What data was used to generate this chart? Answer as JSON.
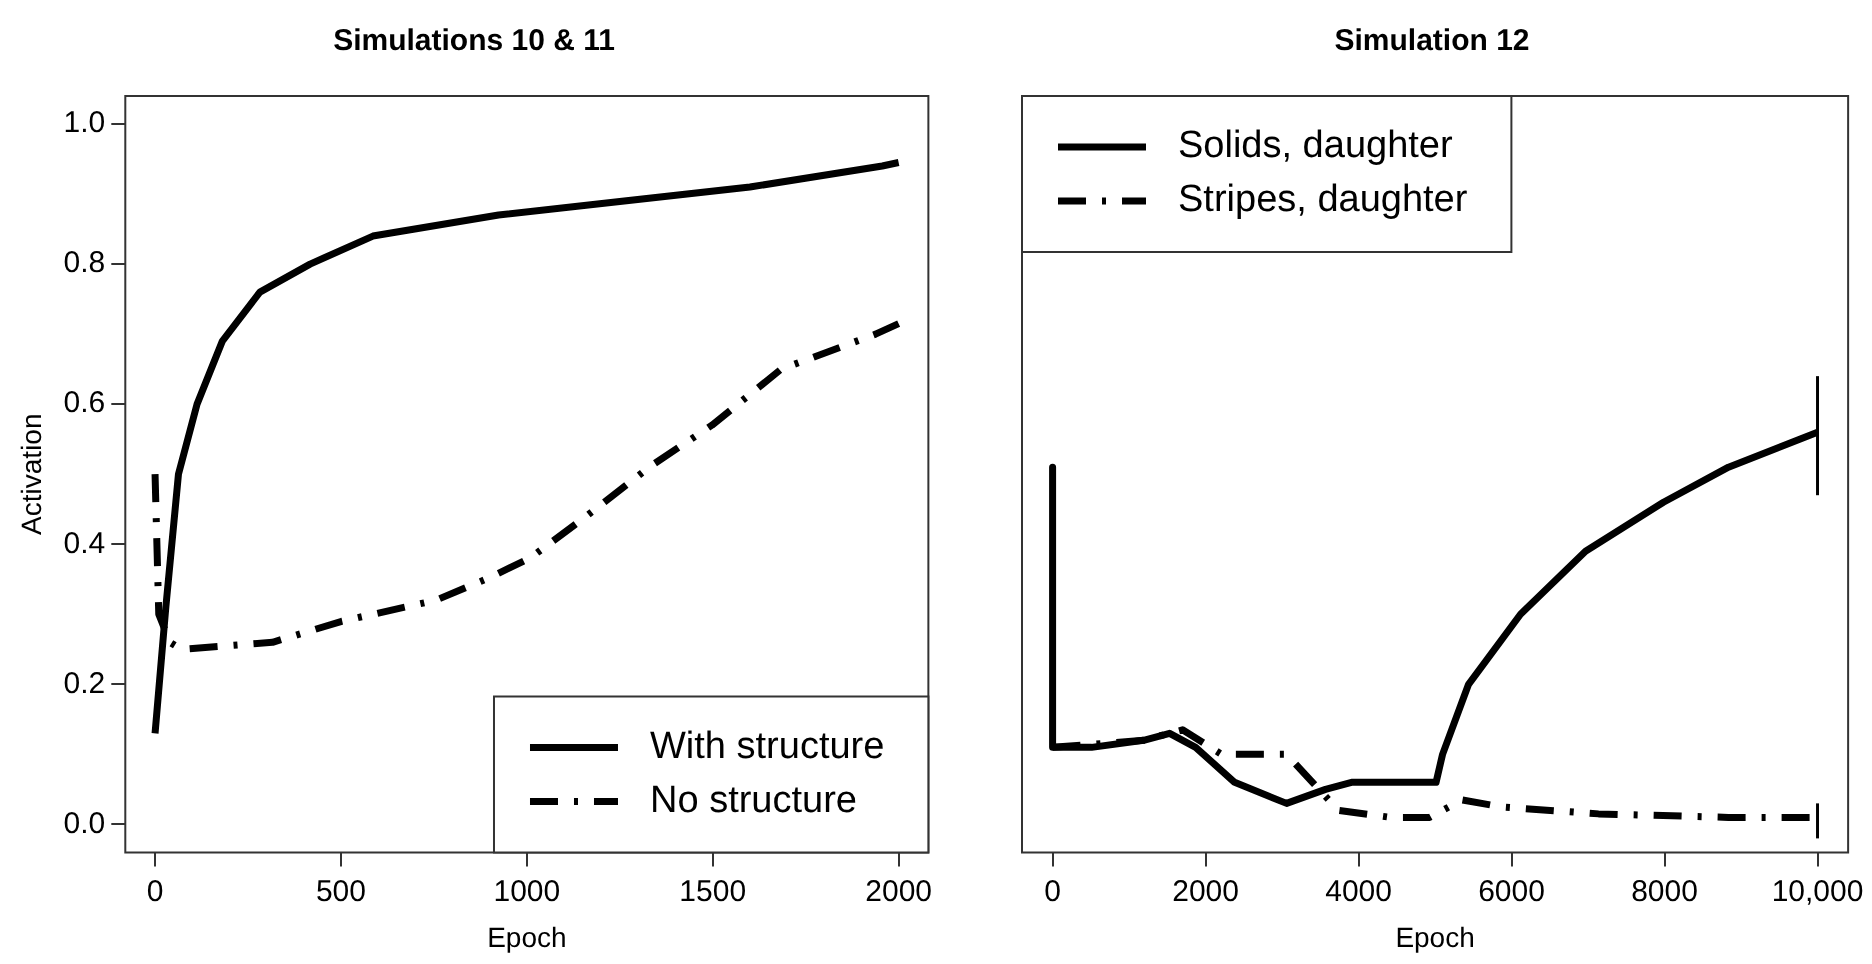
{
  "chart_data": [
    {
      "type": "line",
      "title": "Simulations 10 & 11",
      "xlabel": "Epoch",
      "ylabel": "Activation",
      "xlim": [
        -80,
        2080
      ],
      "ylim": [
        -0.04,
        1.04
      ],
      "xticks": [
        0,
        500,
        1000,
        1500,
        2000
      ],
      "yticks": [
        {
          "value": 0,
          "label": "0.0"
        },
        0.2,
        0.4,
        0.6,
        0.8,
        {
          "value": 1,
          "label": "1.0"
        }
      ],
      "grid": false,
      "legend": "bottom right",
      "marker": "none",
      "series": [
        {
          "name": "With structure",
          "color": "#000000",
          "line_style": "solid",
          "x": [
            0,
            29,
            63,
            113,
            181,
            282,
            417,
            586,
            924,
            1262,
            1600,
            1956,
            2000
          ],
          "values": [
            0.13,
            0.31,
            0.5,
            0.6,
            0.69,
            0.76,
            0.8,
            0.84,
            0.87,
            0.89,
            0.91,
            0.94,
            0.945
          ]
        },
        {
          "name": "No structure",
          "color": "#000000",
          "line_style": "dashed",
          "x": [
            0,
            10,
            40,
            71,
            316,
            502,
            755,
            890,
            1008,
            1160,
            1329,
            1498,
            1684,
            1938,
            2000
          ],
          "values": [
            0.5,
            0.3,
            0.26,
            0.25,
            0.26,
            0.29,
            0.32,
            0.35,
            0.38,
            0.44,
            0.51,
            0.57,
            0.65,
            0.7,
            0.715
          ]
        }
      ]
    },
    {
      "type": "line",
      "title": "Simulation 12",
      "xlabel": "Epoch",
      "xlim": [
        -400,
        10400
      ],
      "ylim": [
        -0.04,
        1.04
      ],
      "xticks": [
        0,
        2000,
        4000,
        6000,
        8000,
        {
          "value": 10000,
          "label": "10,000"
        }
      ],
      "tick_labels": "x",
      "grid": false,
      "legend": "top left",
      "marker": "none",
      "series": [
        {
          "name": "Solids, daughter",
          "color": "#000000",
          "line_style": "solid",
          "x": [
            0,
            0,
            510,
            1190,
            1530,
            1870,
            2379,
            3059,
            3568,
            3908,
            5013,
            5098,
            5438,
            6117,
            6967,
            7986,
            8836,
            10000
          ],
          "values": [
            0.51,
            0.11,
            0.11,
            0.12,
            0.13,
            0.11,
            0.06,
            0.03,
            0.05,
            0.06,
            0.06,
            0.1,
            0.2,
            0.3,
            0.39,
            0.46,
            0.51,
            0.56
          ],
          "errors": [
            null,
            null,
            null,
            null,
            null,
            null,
            null,
            null,
            null,
            null,
            null,
            null,
            null,
            null,
            null,
            null,
            null,
            [
              0.47,
              0.64
            ]
          ]
        },
        {
          "name": "Stripes, daughter",
          "color": "#000000",
          "line_style": "dashed",
          "x": [
            0,
            1190,
            1699,
            2209,
            3059,
            3398,
            3738,
            4418,
            4928,
            5353,
            5862,
            7137,
            8836,
            10000
          ],
          "values": [
            0.11,
            0.12,
            0.135,
            0.1,
            0.1,
            0.06,
            0.02,
            0.01,
            0.01,
            0.035,
            0.025,
            0.015,
            0.01,
            0.01
          ],
          "errors": [
            null,
            null,
            null,
            null,
            null,
            null,
            null,
            null,
            null,
            null,
            null,
            null,
            null,
            [
              -0.02,
              0.03
            ]
          ]
        }
      ]
    }
  ]
}
